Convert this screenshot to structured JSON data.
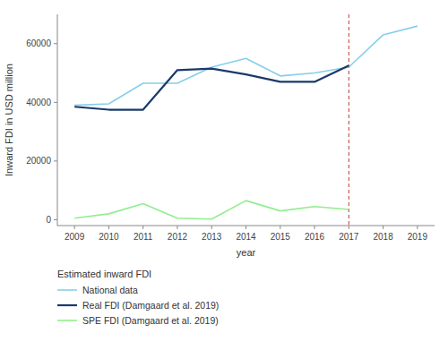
{
  "chart_data": {
    "type": "line",
    "x": [
      2009,
      2010,
      2011,
      2012,
      2013,
      2014,
      2015,
      2016,
      2017,
      2018,
      2019
    ],
    "series": [
      {
        "name": "National data",
        "color": "#87CEEB",
        "values": [
          39000,
          39500,
          46500,
          46500,
          52000,
          55000,
          49000,
          50000,
          52000,
          63000,
          66000
        ]
      },
      {
        "name": "Real FDI (Damgaard et al. 2019)",
        "color": "#1a3a6b",
        "values": [
          38500,
          37500,
          37500,
          51000,
          51500,
          49500,
          47000,
          47000,
          52500,
          null,
          null
        ]
      },
      {
        "name": "SPE FDI (Damgaard et al. 2019)",
        "color": "#90EE90",
        "values": [
          500,
          2000,
          5500,
          500,
          200,
          6500,
          3000,
          4500,
          3500,
          null,
          null
        ]
      }
    ],
    "xlabel": "year",
    "ylabel": "Inward FDI in USD million",
    "legend_title": "Estimated inward FDI",
    "legend": "bottom",
    "grid": false,
    "xlim": [
      2008.5,
      2019.5
    ],
    "xticks": [
      2009,
      2010,
      2011,
      2012,
      2013,
      2014,
      2015,
      2016,
      2017,
      2018,
      2019
    ],
    "ylim": [
      -2000,
      70000
    ],
    "yticks": [
      0,
      20000,
      40000,
      60000
    ],
    "annotations": [
      {
        "type": "vline",
        "x": 2017,
        "color": "#c0392b",
        "line_style": "dashed"
      }
    ]
  }
}
